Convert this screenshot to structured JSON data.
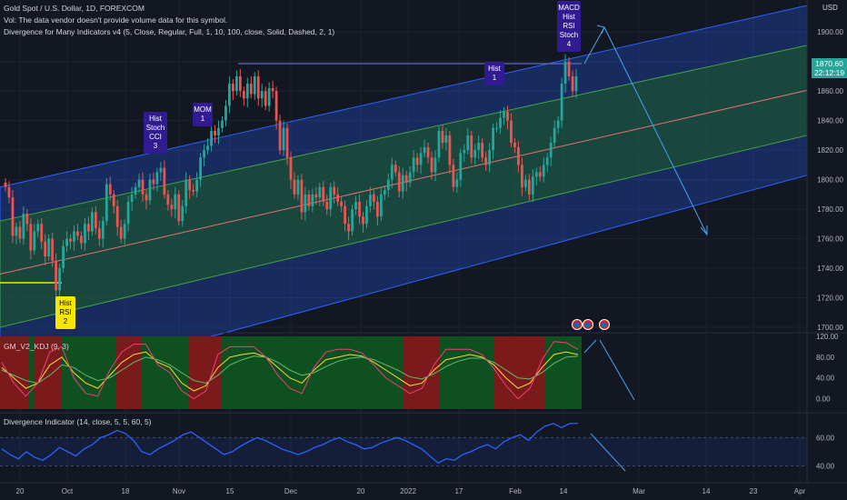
{
  "header": {
    "title_line": "Gold Spot / U.S. Dollar, 1D, FOREXCOM",
    "vol_line": "Vol: The data vendor doesn't provide volume data for this symbol.",
    "div_line": "Divergence for Many Indicators v4 (5, Close, Regular, Full, 1, 10, 100, close, Solid, Dashed, 2, 1)"
  },
  "price_axis": {
    "currency": "USD",
    "last_price": "1870.60",
    "countdown": "22:12:19",
    "ticks": [
      "1900.00",
      "1880.00",
      "1860.00",
      "1840.00",
      "1820.00",
      "1800.00",
      "1780.00",
      "1760.00",
      "1740.00",
      "1720.00",
      "1700.00"
    ]
  },
  "kdj_panel": {
    "legend": "GM_V2_KDJ (9, 3)",
    "ticks": [
      "120.00",
      "80.00",
      "40.00",
      "0.00"
    ]
  },
  "div_panel": {
    "legend": "Divergence Indicator (14, close, 5, 5, 60, 5)",
    "ticks": [
      "60.00",
      "40.00"
    ]
  },
  "time_axis": {
    "labels": [
      "20",
      "Oct",
      "18",
      "Nov",
      "15",
      "Dec",
      "20",
      "2022",
      "17",
      "Feb",
      "14",
      "Mar",
      "14",
      "23",
      "Apr"
    ]
  },
  "colors": {
    "background": "#131722",
    "up": "#26a69a",
    "down": "#ef5350",
    "outer_channel": "#2962ff",
    "inner_channel": "#1b5e20",
    "label_box": "#311b92",
    "yellow_label": "#f7e600",
    "kdj_red_zone": "#7b1a1a",
    "kdj_green_zone": "#0e5020",
    "div_line": "#2962ff"
  },
  "chart_data": [
    {
      "type": "candlestick",
      "title": "Gold Spot / U.S. Dollar, 1D, FOREXCOM",
      "ylim": [
        1700,
        1910
      ],
      "last_price": 1870.6,
      "close_series": [
        1795,
        1788,
        1762,
        1768,
        1760,
        1777,
        1770,
        1752,
        1765,
        1770,
        1758,
        1748,
        1760,
        1745,
        1725,
        1740,
        1755,
        1760,
        1758,
        1765,
        1762,
        1757,
        1770,
        1765,
        1778,
        1767,
        1760,
        1772,
        1797,
        1790,
        1782,
        1768,
        1760,
        1770,
        1785,
        1790,
        1795,
        1800,
        1790,
        1786,
        1800,
        1797,
        1805,
        1808,
        1790,
        1783,
        1780,
        1790,
        1772,
        1782,
        1800,
        1793,
        1792,
        1800,
        1815,
        1820,
        1823,
        1833,
        1830,
        1835,
        1840,
        1850,
        1865,
        1860,
        1870,
        1860,
        1855,
        1865,
        1858,
        1870,
        1855,
        1860,
        1850,
        1862,
        1860,
        1840,
        1820,
        1835,
        1815,
        1800,
        1790,
        1800,
        1778,
        1790,
        1782,
        1790,
        1788,
        1795,
        1785,
        1780,
        1795,
        1790,
        1785,
        1782,
        1770,
        1765,
        1780,
        1785,
        1775,
        1770,
        1782,
        1790,
        1785,
        1775,
        1790,
        1793,
        1800,
        1810,
        1805,
        1792,
        1803,
        1798,
        1805,
        1815,
        1810,
        1818,
        1822,
        1815,
        1805,
        1815,
        1833,
        1825,
        1830,
        1810,
        1795,
        1800,
        1818,
        1820,
        1830,
        1815,
        1820,
        1825,
        1815,
        1810,
        1820,
        1835,
        1835,
        1842,
        1846,
        1840,
        1825,
        1822,
        1810,
        1795,
        1800,
        1790,
        1802,
        1805,
        1802,
        1810,
        1815,
        1825,
        1835,
        1840,
        1865,
        1880,
        1870,
        1860,
        1870
      ],
      "channel_outer": [
        {
          "x": "start",
          "upper": 1795,
          "lower": 1655
        },
        {
          "x": "end",
          "upper": 1918,
          "lower": 1803
        }
      ],
      "channel_inner": [
        {
          "x": "start",
          "upper": 1772,
          "lower": 1700
        },
        {
          "x": "end",
          "upper": 1891,
          "lower": 1830
        }
      ],
      "annotations": [
        {
          "text": [
            "Hist",
            "RSI",
            "2"
          ],
          "color": "#f7e600",
          "price": 1726
        },
        {
          "text": [
            "Hist",
            "Stoch",
            "CCI",
            "3"
          ],
          "color": "#311b92",
          "price": 1812
        },
        {
          "text": [
            "MOM",
            "1"
          ],
          "color": "#311b92",
          "price": 1835
        },
        {
          "text": [
            "Hist",
            "1"
          ],
          "color": "#311b92",
          "price": 1857
        },
        {
          "text": [
            "MACD",
            "Hist",
            "RSI",
            "Stoch",
            "4"
          ],
          "color": "#311b92",
          "price": 1880
        }
      ]
    },
    {
      "type": "line",
      "title": "GM_V2_KDJ (9, 3)",
      "ylim": [
        -20,
        120
      ],
      "zones": [
        "red",
        "green",
        "red",
        "green",
        "red",
        "green",
        "red",
        "green",
        "red",
        "green",
        "red",
        "green"
      ],
      "series": [
        {
          "name": "K",
          "values": [
            60,
            40,
            20,
            30,
            65,
            80,
            50,
            30,
            20,
            45,
            70,
            85,
            90,
            70,
            60,
            30,
            15,
            25,
            60,
            80,
            85,
            88,
            80,
            60,
            40,
            30,
            55,
            75,
            80,
            85,
            82,
            70,
            55,
            40,
            25,
            30,
            55,
            75,
            80,
            85,
            80,
            65,
            40,
            20,
            30,
            60,
            85,
            90,
            85
          ]
        },
        {
          "name": "D",
          "values": [
            55,
            45,
            35,
            30,
            45,
            65,
            60,
            45,
            35,
            40,
            55,
            70,
            80,
            75,
            65,
            50,
            35,
            30,
            45,
            65,
            75,
            82,
            80,
            70,
            55,
            45,
            50,
            62,
            72,
            78,
            80,
            75,
            65,
            55,
            42,
            38,
            48,
            62,
            72,
            78,
            78,
            70,
            55,
            40,
            38,
            50,
            68,
            80,
            82
          ]
        },
        {
          "name": "J",
          "values": [
            70,
            30,
            5,
            30,
            90,
            100,
            40,
            10,
            5,
            55,
            90,
            105,
            105,
            65,
            50,
            15,
            0,
            15,
            85,
            100,
            100,
            100,
            80,
            45,
            20,
            10,
            60,
            90,
            95,
            95,
            88,
            65,
            40,
            25,
            10,
            20,
            65,
            95,
            95,
            95,
            85,
            58,
            25,
            0,
            20,
            75,
            110,
            108,
            95
          ]
        }
      ]
    },
    {
      "type": "line",
      "title": "Divergence Indicator (14, close, 5, 5, 60, 5)",
      "ylim": [
        30,
        75
      ],
      "series": [
        {
          "name": "RSI",
          "values": [
            52,
            48,
            45,
            50,
            46,
            44,
            48,
            53,
            50,
            47,
            52,
            55,
            60,
            62,
            65,
            63,
            58,
            50,
            48,
            52,
            55,
            58,
            62,
            64,
            60,
            56,
            52,
            48,
            50,
            54,
            57,
            60,
            58,
            55,
            52,
            50,
            48,
            50,
            53,
            55,
            58,
            60,
            57,
            55,
            52,
            53,
            56,
            58,
            60,
            58,
            55,
            52,
            47,
            42,
            45,
            44,
            48,
            50,
            53,
            55,
            52,
            57,
            60,
            62,
            58,
            64,
            68,
            70,
            67,
            70,
            70
          ]
        }
      ]
    }
  ]
}
